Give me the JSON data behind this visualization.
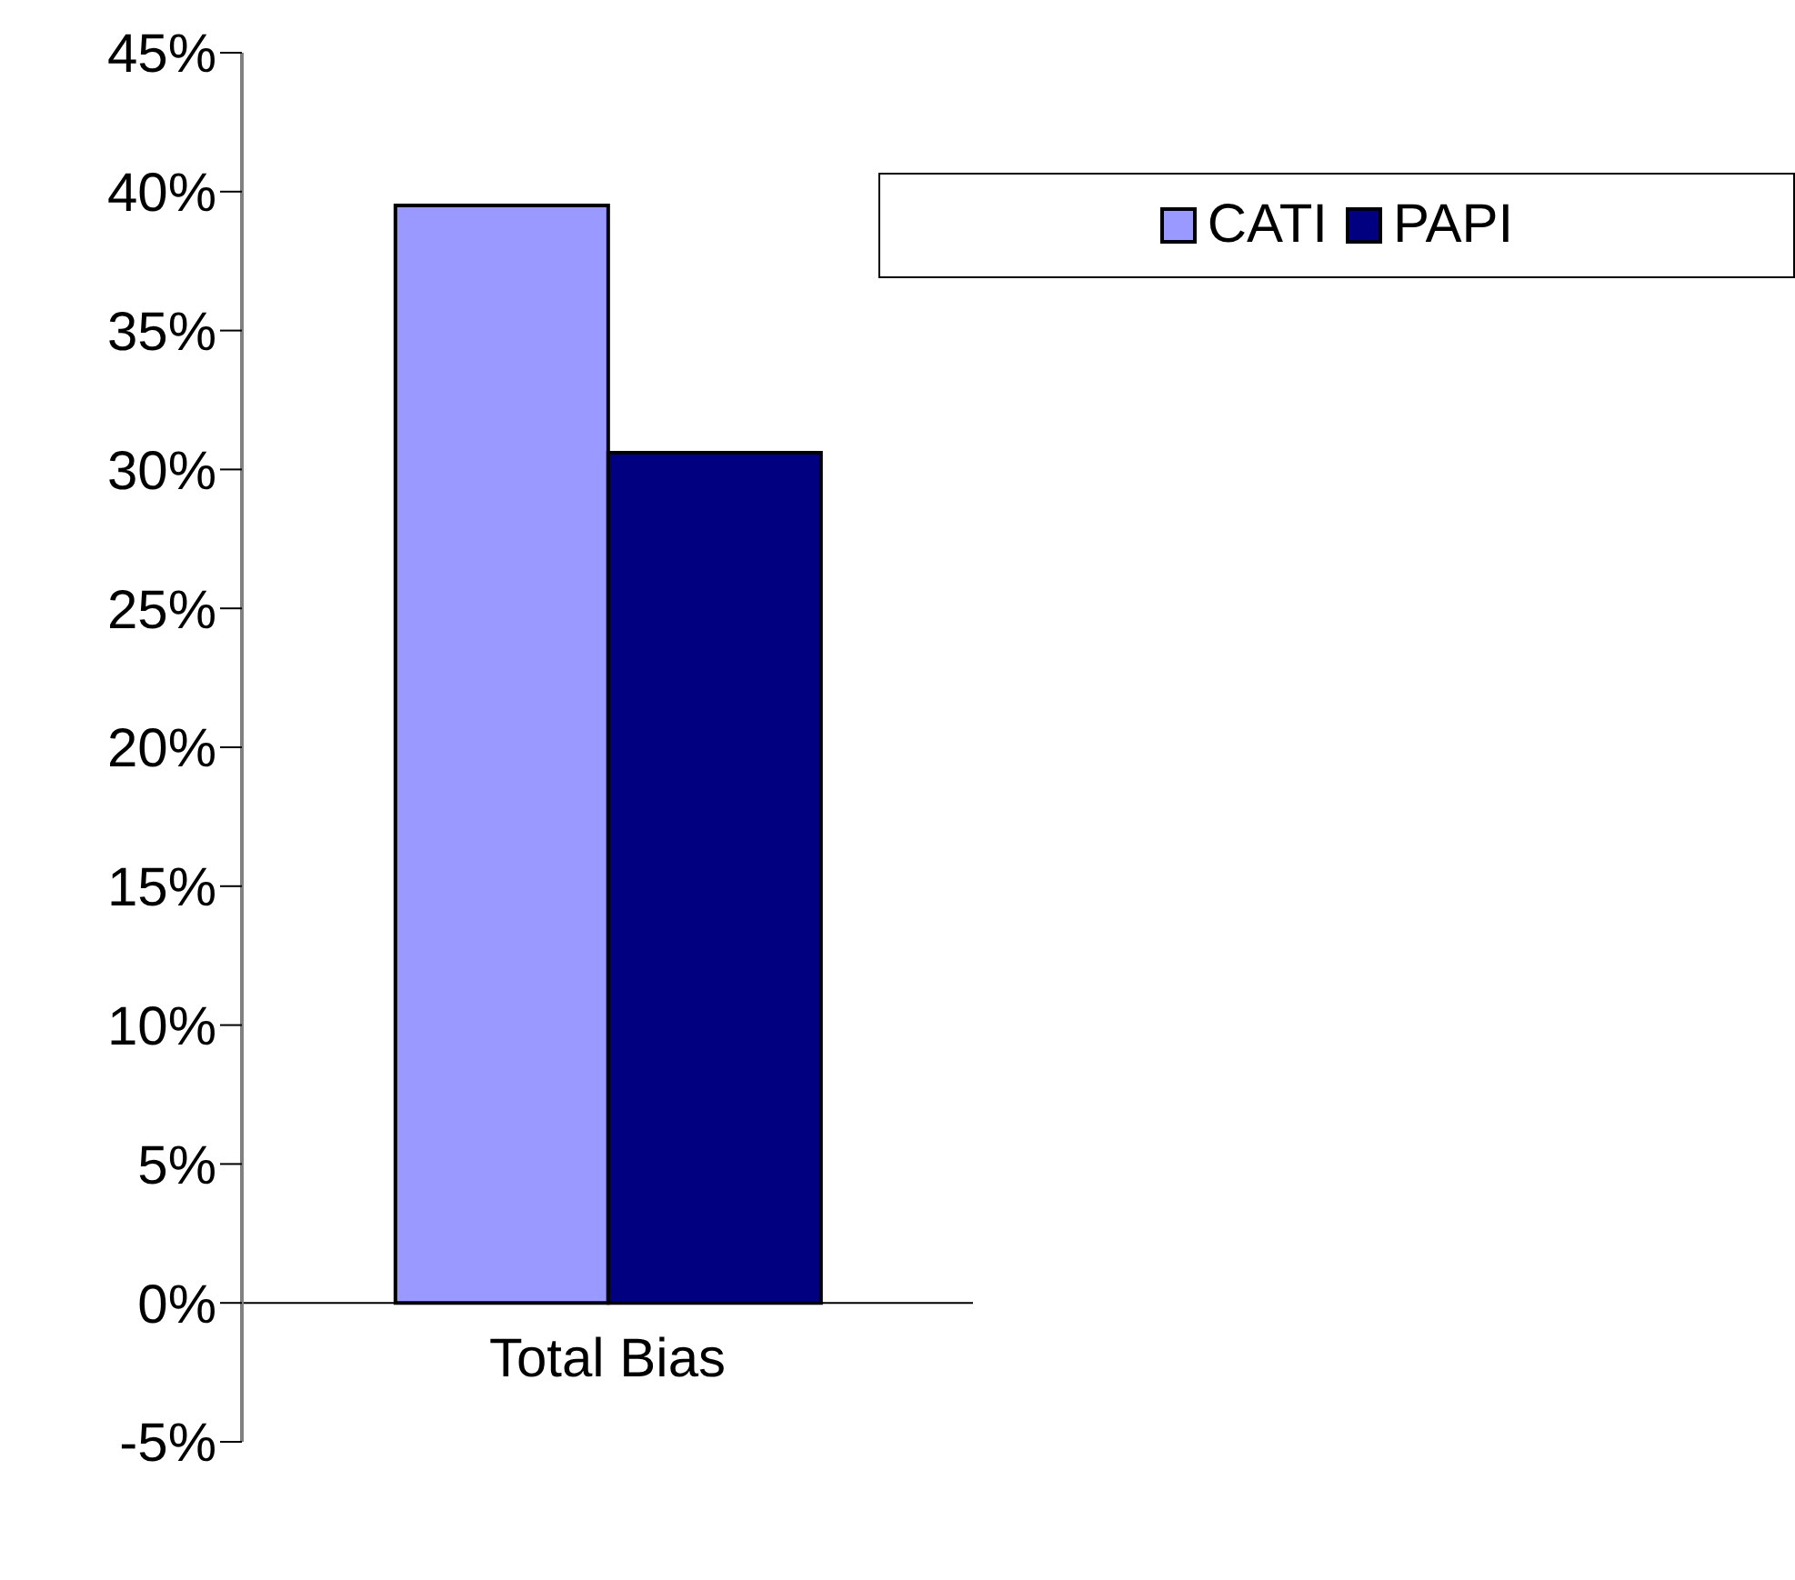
{
  "chart_data": {
    "type": "bar",
    "categories": [
      "Total Bias"
    ],
    "series": [
      {
        "name": "CATI",
        "color": "#9999ff",
        "values": [
          39.5
        ]
      },
      {
        "name": "PAPI",
        "color": "#000080",
        "values": [
          30.6
        ]
      }
    ],
    "ylim": [
      -5,
      45
    ],
    "yticks": [
      {
        "value": -5,
        "label": "-5%"
      },
      {
        "value": 0,
        "label": "0%"
      },
      {
        "value": 5,
        "label": "5%"
      },
      {
        "value": 10,
        "label": "10%"
      },
      {
        "value": 15,
        "label": "15%"
      },
      {
        "value": 20,
        "label": "20%"
      },
      {
        "value": 25,
        "label": "25%"
      },
      {
        "value": 30,
        "label": "30%"
      },
      {
        "value": 35,
        "label": "35%"
      },
      {
        "value": 40,
        "label": "40%"
      },
      {
        "value": 45,
        "label": "45%"
      }
    ],
    "grid": false,
    "legend": "top right"
  }
}
